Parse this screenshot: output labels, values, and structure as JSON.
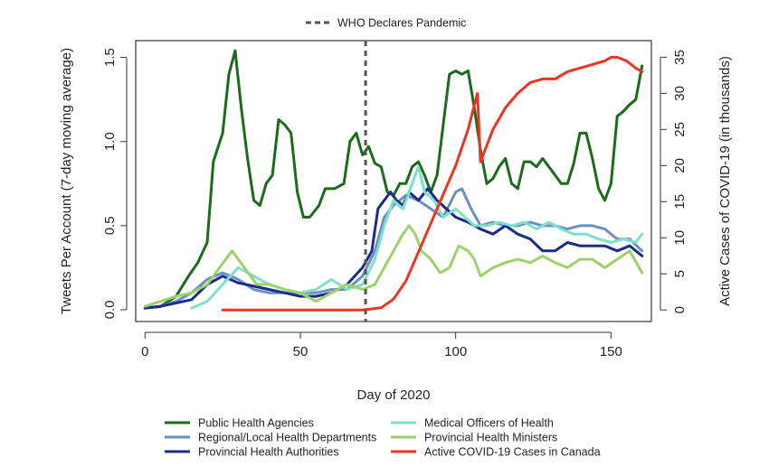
{
  "chart_data": {
    "type": "line",
    "xlabel": "Day of 2020",
    "ylabel_left": "Tweets Per Account (7-day moving average)",
    "ylabel_right": "Active Cases of COVID-19 (in thousands)",
    "xlim": [
      -3,
      163
    ],
    "ylim_left": [
      -0.07,
      1.6
    ],
    "ylim_right": [
      -1.6,
      37.3
    ],
    "x_ticks": [
      0,
      50,
      100,
      150
    ],
    "y_ticks_left": [
      0.0,
      0.5,
      1.0,
      1.5
    ],
    "y_ticks_left_labels": [
      "0.0",
      "0.5",
      "1.0",
      "1.5"
    ],
    "y_ticks_right": [
      0,
      5,
      10,
      15,
      20,
      25,
      30,
      35
    ],
    "grid": false,
    "annotation": {
      "label": "WHO Declares Pandemic",
      "x": 71,
      "style": "dashed-vertical"
    },
    "legend_placement": "bottom",
    "series": [
      {
        "name": "Public Health Agencies",
        "color": "#1a6b1a",
        "axis": "left",
        "points": [
          [
            0,
            0.01
          ],
          [
            5,
            0.02
          ],
          [
            10,
            0.08
          ],
          [
            14,
            0.2
          ],
          [
            17,
            0.28
          ],
          [
            20,
            0.4
          ],
          [
            22,
            0.88
          ],
          [
            25,
            1.05
          ],
          [
            27,
            1.4
          ],
          [
            29,
            1.54
          ],
          [
            31,
            1.2
          ],
          [
            33,
            0.9
          ],
          [
            35,
            0.65
          ],
          [
            37,
            0.62
          ],
          [
            39,
            0.75
          ],
          [
            41,
            0.8
          ],
          [
            43,
            1.13
          ],
          [
            45,
            1.1
          ],
          [
            47,
            1.05
          ],
          [
            49,
            0.7
          ],
          [
            51,
            0.55
          ],
          [
            53,
            0.55
          ],
          [
            56,
            0.62
          ],
          [
            58,
            0.72
          ],
          [
            61,
            0.72
          ],
          [
            64,
            0.75
          ],
          [
            66,
            1.0
          ],
          [
            68,
            1.05
          ],
          [
            70,
            0.92
          ],
          [
            72,
            0.97
          ],
          [
            74,
            0.87
          ],
          [
            76,
            0.85
          ],
          [
            78,
            0.7
          ],
          [
            80,
            0.68
          ],
          [
            82,
            0.75
          ],
          [
            84,
            0.75
          ],
          [
            86,
            0.85
          ],
          [
            88,
            0.88
          ],
          [
            90,
            0.8
          ],
          [
            92,
            0.7
          ],
          [
            94,
            0.8
          ],
          [
            96,
            1.1
          ],
          [
            98,
            1.4
          ],
          [
            100,
            1.42
          ],
          [
            102,
            1.4
          ],
          [
            104,
            1.42
          ],
          [
            106,
            1.2
          ],
          [
            108,
            0.95
          ],
          [
            110,
            0.75
          ],
          [
            112,
            0.78
          ],
          [
            114,
            0.85
          ],
          [
            116,
            0.9
          ],
          [
            118,
            0.75
          ],
          [
            120,
            0.72
          ],
          [
            122,
            0.88
          ],
          [
            124,
            0.88
          ],
          [
            126,
            0.85
          ],
          [
            128,
            0.9
          ],
          [
            130,
            0.85
          ],
          [
            132,
            0.8
          ],
          [
            134,
            0.75
          ],
          [
            136,
            0.75
          ],
          [
            138,
            0.87
          ],
          [
            140,
            1.05
          ],
          [
            142,
            1.05
          ],
          [
            144,
            0.9
          ],
          [
            146,
            0.72
          ],
          [
            148,
            0.65
          ],
          [
            150,
            0.75
          ],
          [
            152,
            1.15
          ],
          [
            154,
            1.18
          ],
          [
            156,
            1.22
          ],
          [
            158,
            1.25
          ],
          [
            160,
            1.45
          ]
        ]
      },
      {
        "name": "Regional/Local Health Departments",
        "color": "#6b8fbf",
        "axis": "left",
        "points": [
          [
            0,
            0.01
          ],
          [
            5,
            0.02
          ],
          [
            10,
            0.05
          ],
          [
            15,
            0.1
          ],
          [
            20,
            0.18
          ],
          [
            25,
            0.22
          ],
          [
            30,
            0.18
          ],
          [
            35,
            0.12
          ],
          [
            40,
            0.1
          ],
          [
            45,
            0.1
          ],
          [
            50,
            0.1
          ],
          [
            55,
            0.1
          ],
          [
            60,
            0.12
          ],
          [
            65,
            0.12
          ],
          [
            70,
            0.2
          ],
          [
            74,
            0.35
          ],
          [
            77,
            0.55
          ],
          [
            80,
            0.62
          ],
          [
            84,
            0.68
          ],
          [
            88,
            0.65
          ],
          [
            92,
            0.6
          ],
          [
            96,
            0.55
          ],
          [
            100,
            0.7
          ],
          [
            102,
            0.72
          ],
          [
            105,
            0.6
          ],
          [
            108,
            0.5
          ],
          [
            112,
            0.52
          ],
          [
            116,
            0.5
          ],
          [
            120,
            0.5
          ],
          [
            124,
            0.52
          ],
          [
            128,
            0.5
          ],
          [
            132,
            0.5
          ],
          [
            136,
            0.48
          ],
          [
            140,
            0.5
          ],
          [
            144,
            0.5
          ],
          [
            148,
            0.48
          ],
          [
            152,
            0.42
          ],
          [
            156,
            0.42
          ],
          [
            160,
            0.35
          ]
        ]
      },
      {
        "name": "Provincial Health Authorities",
        "color": "#1a2b8a",
        "axis": "left",
        "points": [
          [
            0,
            0.01
          ],
          [
            5,
            0.02
          ],
          [
            10,
            0.04
          ],
          [
            15,
            0.06
          ],
          [
            20,
            0.15
          ],
          [
            25,
            0.2
          ],
          [
            30,
            0.16
          ],
          [
            35,
            0.14
          ],
          [
            40,
            0.12
          ],
          [
            45,
            0.1
          ],
          [
            50,
            0.08
          ],
          [
            55,
            0.08
          ],
          [
            60,
            0.1
          ],
          [
            65,
            0.15
          ],
          [
            70,
            0.25
          ],
          [
            73,
            0.35
          ],
          [
            75,
            0.6
          ],
          [
            77,
            0.65
          ],
          [
            79,
            0.7
          ],
          [
            81,
            0.65
          ],
          [
            83,
            0.62
          ],
          [
            85,
            0.7
          ],
          [
            88,
            0.65
          ],
          [
            91,
            0.72
          ],
          [
            94,
            0.65
          ],
          [
            97,
            0.6
          ],
          [
            100,
            0.55
          ],
          [
            104,
            0.52
          ],
          [
            108,
            0.48
          ],
          [
            112,
            0.45
          ],
          [
            116,
            0.5
          ],
          [
            120,
            0.45
          ],
          [
            124,
            0.42
          ],
          [
            128,
            0.35
          ],
          [
            132,
            0.35
          ],
          [
            136,
            0.4
          ],
          [
            140,
            0.38
          ],
          [
            144,
            0.38
          ],
          [
            148,
            0.38
          ],
          [
            152,
            0.35
          ],
          [
            156,
            0.38
          ],
          [
            160,
            0.32
          ]
        ]
      },
      {
        "name": "Medical Officers of Health",
        "color": "#7ee0cc",
        "axis": "left",
        "points": [
          [
            15,
            0.01
          ],
          [
            20,
            0.05
          ],
          [
            25,
            0.15
          ],
          [
            30,
            0.25
          ],
          [
            35,
            0.2
          ],
          [
            40,
            0.15
          ],
          [
            45,
            0.12
          ],
          [
            50,
            0.1
          ],
          [
            55,
            0.12
          ],
          [
            60,
            0.18
          ],
          [
            65,
            0.12
          ],
          [
            70,
            0.15
          ],
          [
            74,
            0.3
          ],
          [
            77,
            0.5
          ],
          [
            80,
            0.65
          ],
          [
            83,
            0.6
          ],
          [
            86,
            0.75
          ],
          [
            88,
            0.85
          ],
          [
            90,
            0.7
          ],
          [
            93,
            0.65
          ],
          [
            96,
            0.55
          ],
          [
            100,
            0.6
          ],
          [
            103,
            0.55
          ],
          [
            106,
            0.5
          ],
          [
            110,
            0.5
          ],
          [
            114,
            0.52
          ],
          [
            118,
            0.5
          ],
          [
            122,
            0.52
          ],
          [
            126,
            0.48
          ],
          [
            130,
            0.52
          ],
          [
            134,
            0.48
          ],
          [
            138,
            0.45
          ],
          [
            142,
            0.45
          ],
          [
            146,
            0.42
          ],
          [
            150,
            0.4
          ],
          [
            154,
            0.42
          ],
          [
            158,
            0.4
          ],
          [
            160,
            0.45
          ]
        ]
      },
      {
        "name": "Provincial Health Ministers",
        "color": "#9dd16a",
        "axis": "left",
        "points": [
          [
            0,
            0.02
          ],
          [
            5,
            0.05
          ],
          [
            10,
            0.08
          ],
          [
            15,
            0.1
          ],
          [
            20,
            0.15
          ],
          [
            24,
            0.25
          ],
          [
            26,
            0.3
          ],
          [
            28,
            0.35
          ],
          [
            30,
            0.3
          ],
          [
            32,
            0.25
          ],
          [
            34,
            0.2
          ],
          [
            36,
            0.15
          ],
          [
            40,
            0.15
          ],
          [
            45,
            0.12
          ],
          [
            50,
            0.1
          ],
          [
            55,
            0.05
          ],
          [
            60,
            0.1
          ],
          [
            65,
            0.15
          ],
          [
            70,
            0.12
          ],
          [
            74,
            0.15
          ],
          [
            77,
            0.25
          ],
          [
            80,
            0.35
          ],
          [
            83,
            0.45
          ],
          [
            85,
            0.5
          ],
          [
            87,
            0.45
          ],
          [
            89,
            0.35
          ],
          [
            92,
            0.3
          ],
          [
            95,
            0.22
          ],
          [
            98,
            0.25
          ],
          [
            101,
            0.38
          ],
          [
            104,
            0.35
          ],
          [
            106,
            0.3
          ],
          [
            108,
            0.2
          ],
          [
            112,
            0.25
          ],
          [
            116,
            0.28
          ],
          [
            120,
            0.3
          ],
          [
            124,
            0.28
          ],
          [
            128,
            0.32
          ],
          [
            132,
            0.28
          ],
          [
            136,
            0.25
          ],
          [
            140,
            0.3
          ],
          [
            144,
            0.3
          ],
          [
            148,
            0.25
          ],
          [
            152,
            0.3
          ],
          [
            156,
            0.35
          ],
          [
            160,
            0.22
          ]
        ]
      },
      {
        "name": "Active COVID-19 Cases in Canada",
        "color": "#ee3322",
        "axis": "right",
        "points": [
          [
            25,
            0
          ],
          [
            40,
            0
          ],
          [
            60,
            0
          ],
          [
            70,
            0
          ],
          [
            76,
            0.3
          ],
          [
            80,
            1.5
          ],
          [
            84,
            4
          ],
          [
            88,
            8
          ],
          [
            92,
            12
          ],
          [
            96,
            16
          ],
          [
            100,
            20
          ],
          [
            104,
            25
          ],
          [
            107,
            30
          ],
          [
            108,
            20.5
          ],
          [
            112,
            25
          ],
          [
            116,
            28
          ],
          [
            120,
            30
          ],
          [
            124,
            31.5
          ],
          [
            128,
            32
          ],
          [
            132,
            32
          ],
          [
            136,
            33
          ],
          [
            140,
            33.5
          ],
          [
            144,
            34
          ],
          [
            148,
            34.5
          ],
          [
            150,
            35
          ],
          [
            152,
            35
          ],
          [
            155,
            34.5
          ],
          [
            158,
            33.5
          ],
          [
            160,
            33
          ]
        ]
      }
    ]
  }
}
